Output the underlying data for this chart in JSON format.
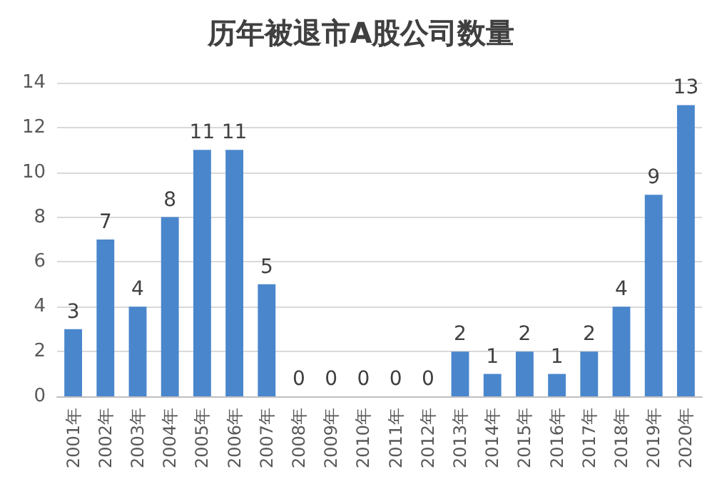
{
  "chart_data": {
    "type": "bar",
    "title": "历年被退市A股公司数量",
    "categories": [
      "2001年",
      "2002年",
      "2003年",
      "2004年",
      "2005年",
      "2006年",
      "2007年",
      "2008年",
      "2009年",
      "2010年",
      "2011年",
      "2012年",
      "2013年",
      "2014年",
      "2015年",
      "2016年",
      "2017年",
      "2018年",
      "2019年",
      "2020年"
    ],
    "values": [
      3,
      7,
      4,
      8,
      11,
      11,
      5,
      0,
      0,
      0,
      0,
      0,
      2,
      1,
      2,
      1,
      2,
      4,
      9,
      13
    ],
    "color": "#4a86cc",
    "ylim": [
      0,
      14
    ],
    "yticks": [
      0,
      2,
      4,
      6,
      8,
      10,
      12,
      14
    ],
    "grid": "y",
    "data_labels": true
  }
}
